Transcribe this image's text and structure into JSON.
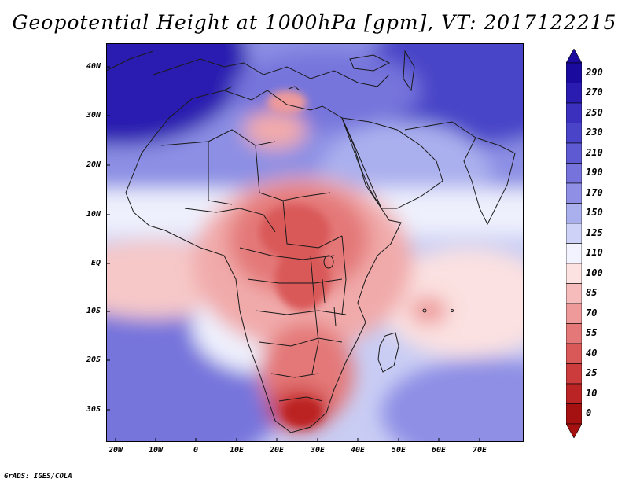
{
  "title": "Geopotential Height at 1000hPa [gpm], VT: 2017122215",
  "credit": "GrADS: IGES/COLA",
  "map": {
    "lat_ticks": [
      "40N",
      "30N",
      "20N",
      "10N",
      "EQ",
      "10S",
      "20S",
      "30S"
    ],
    "lon_ticks": [
      "20W",
      "10W",
      "0",
      "10E",
      "20E",
      "30E",
      "40E",
      "50E",
      "60E",
      "70E"
    ]
  },
  "colorbar": {
    "levels": [
      "290",
      "270",
      "250",
      "230",
      "210",
      "190",
      "170",
      "150",
      "125",
      "110",
      "100",
      "85",
      "70",
      "55",
      "40",
      "25",
      "10",
      "0"
    ],
    "colors": [
      "#1a0a9e",
      "#2a1cb0",
      "#3a30bd",
      "#4a44c8",
      "#5e5ad2",
      "#7674dc",
      "#8e8fe5",
      "#aab0ee",
      "#cdd2f6",
      "#f3f3ff",
      "#fde2e2",
      "#f6bcbc",
      "#ee9a9a",
      "#e47878",
      "#d95858",
      "#cc3c3c",
      "#bb2424",
      "#a51010"
    ]
  }
}
